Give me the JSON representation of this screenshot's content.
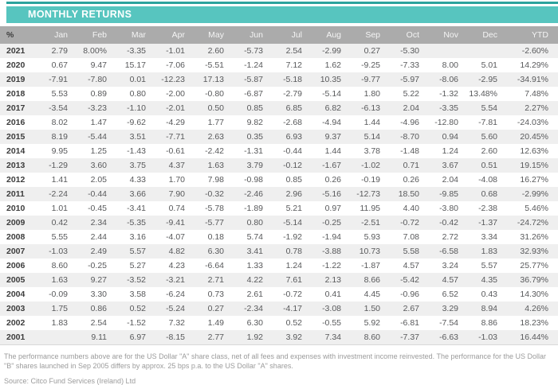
{
  "header": {
    "title": "MONTHLY RETURNS"
  },
  "colors": {
    "accent": "#57C5BF",
    "accent_dark": "#2BA39D",
    "header_gray": "#ABABAB",
    "alt_row": "#EFEFEF"
  },
  "table": {
    "columns": [
      "%",
      "Jan",
      "Feb",
      "Mar",
      "Apr",
      "May",
      "Jun",
      "Jul",
      "Aug",
      "Sep",
      "Oct",
      "Nov",
      "Dec",
      "YTD"
    ],
    "rows": [
      {
        "year": "2021",
        "values": [
          "2.79",
          "8.00%",
          "-3.35",
          "-1.01",
          "2.60",
          "-5.73",
          "2.54",
          "-2.99",
          "0.27",
          "-5.30",
          "",
          "",
          "-2.60%"
        ]
      },
      {
        "year": "2020",
        "values": [
          "0.67",
          "9.47",
          "15.17",
          "-7.06",
          "-5.51",
          "-1.24",
          "7.12",
          "1.62",
          "-9.25",
          "-7.33",
          "8.00",
          "5.01",
          "14.29%"
        ]
      },
      {
        "year": "2019",
        "values": [
          "-7.91",
          "-7.80",
          "0.01",
          "-12.23",
          "17.13",
          "-5.87",
          "-5.18",
          "10.35",
          "-9.77",
          "-5.97",
          "-8.06",
          "-2.95",
          "-34.91%"
        ]
      },
      {
        "year": "2018",
        "values": [
          "5.53",
          "0.89",
          "0.80",
          "-2.00",
          "-0.80",
          "-6.87",
          "-2.79",
          "-5.14",
          "1.80",
          "5.22",
          "-1.32",
          "13.48%",
          "7.48%"
        ]
      },
      {
        "year": "2017",
        "values": [
          "-3.54",
          "-3.23",
          "-1.10",
          "-2.01",
          "0.50",
          "0.85",
          "6.85",
          "6.82",
          "-6.13",
          "2.04",
          "-3.35",
          "5.54",
          "2.27%"
        ]
      },
      {
        "year": "2016",
        "values": [
          "8.02",
          "1.47",
          "-9.62",
          "-4.29",
          "1.77",
          "9.82",
          "-2.68",
          "-4.94",
          "1.44",
          "-4.96",
          "-12.80",
          "-7.81",
          "-24.03%"
        ]
      },
      {
        "year": "2015",
        "values": [
          "8.19",
          "-5.44",
          "3.51",
          "-7.71",
          "2.63",
          "0.35",
          "6.93",
          "9.37",
          "5.14",
          "-8.70",
          "0.94",
          "5.60",
          "20.45%"
        ]
      },
      {
        "year": "2014",
        "values": [
          "9.95",
          "1.25",
          "-1.43",
          "-0.61",
          "-2.42",
          "-1.31",
          "-0.44",
          "1.44",
          "3.78",
          "-1.48",
          "1.24",
          "2.60",
          "12.63%"
        ]
      },
      {
        "year": "2013",
        "values": [
          "-1.29",
          "3.60",
          "3.75",
          "4.37",
          "1.63",
          "3.79",
          "-0.12",
          "-1.67",
          "-1.02",
          "0.71",
          "3.67",
          "0.51",
          "19.15%"
        ]
      },
      {
        "year": "2012",
        "values": [
          "1.41",
          "2.05",
          "4.33",
          "1.70",
          "7.98",
          "-0.98",
          "0.85",
          "0.26",
          "-0.19",
          "0.26",
          "2.04",
          "-4.08",
          "16.27%"
        ]
      },
      {
        "year": "2011",
        "values": [
          "-2.24",
          "-0.44",
          "3.66",
          "7.90",
          "-0.32",
          "-2.46",
          "2.96",
          "-5.16",
          "-12.73",
          "18.50",
          "-9.85",
          "0.68",
          "-2.99%"
        ]
      },
      {
        "year": "2010",
        "values": [
          "1.01",
          "-0.45",
          "-3.41",
          "0.74",
          "-5.78",
          "-1.89",
          "5.21",
          "0.97",
          "11.95",
          "4.40",
          "-3.80",
          "-2.38",
          "5.46%"
        ]
      },
      {
        "year": "2009",
        "values": [
          "0.42",
          "2.34",
          "-5.35",
          "-9.41",
          "-5.77",
          "0.80",
          "-5.14",
          "-0.25",
          "-2.51",
          "-0.72",
          "-0.42",
          "-1.37",
          "-24.72%"
        ]
      },
      {
        "year": "2008",
        "values": [
          "5.55",
          "2.44",
          "3.16",
          "-4.07",
          "0.18",
          "5.74",
          "-1.92",
          "-1.94",
          "5.93",
          "7.08",
          "2.72",
          "3.34",
          "31.26%"
        ]
      },
      {
        "year": "2007",
        "values": [
          "-1.03",
          "2.49",
          "5.57",
          "4.82",
          "6.30",
          "3.41",
          "0.78",
          "-3.88",
          "10.73",
          "5.58",
          "-6.58",
          "1.83",
          "32.93%"
        ]
      },
      {
        "year": "2006",
        "values": [
          "8.60",
          "-0.25",
          "5.27",
          "4.23",
          "-6.64",
          "1.33",
          "1.24",
          "-1.22",
          "-1.87",
          "4.57",
          "3.24",
          "5.57",
          "25.77%"
        ]
      },
      {
        "year": "2005",
        "values": [
          "1.63",
          "9.27",
          "-3.52",
          "-3.21",
          "2.71",
          "4.22",
          "7.61",
          "2.13",
          "8.66",
          "-5.42",
          "4.57",
          "4.35",
          "36.79%"
        ]
      },
      {
        "year": "2004",
        "values": [
          "-0.09",
          "3.30",
          "3.58",
          "-6.24",
          "0.73",
          "2.61",
          "-0.72",
          "0.41",
          "4.45",
          "-0.96",
          "6.52",
          "0.43",
          "14.30%"
        ]
      },
      {
        "year": "2003",
        "values": [
          "1.75",
          "0.86",
          "0.52",
          "-5.24",
          "0.27",
          "-2.34",
          "-4.17",
          "-3.08",
          "1.50",
          "2.67",
          "3.29",
          "8.94",
          "4.26%"
        ]
      },
      {
        "year": "2002",
        "values": [
          "1.83",
          "2.54",
          "-1.52",
          "7.32",
          "1.49",
          "6.30",
          "0.52",
          "-0.55",
          "5.92",
          "-6.81",
          "-7.54",
          "8.86",
          "18.23%"
        ]
      },
      {
        "year": "2001",
        "values": [
          "",
          "9.11",
          "6.97",
          "-8.15",
          "2.77",
          "1.92",
          "3.92",
          "7.34",
          "8.60",
          "-7.37",
          "-6.63",
          "-1.03",
          "16.44%"
        ]
      }
    ]
  },
  "footer": {
    "note": "The performance numbers above are for the US Dollar \"A\" share class, net of all fees and expenses with investment income reinvested. The performance for the US Dollar \"B\" shares launched in Sep 2005 differs by approx. 25 bps p.a. to the US Dollar \"A\" shares.",
    "source": "Source: Citco Fund Services (Ireland) Ltd"
  }
}
